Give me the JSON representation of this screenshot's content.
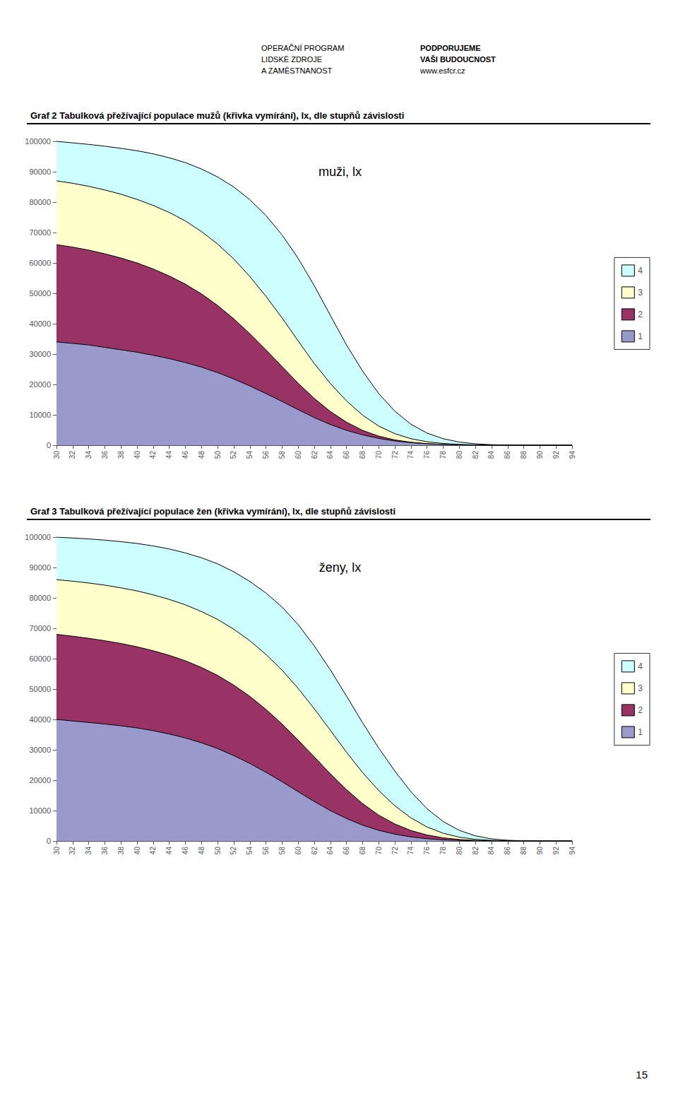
{
  "chart_data": [
    {
      "type": "area",
      "title": "Graf 2 Tabulková přežívající populace mužů (křivka vymírání), lx, dle stupňů závislosti",
      "annotations": [
        "muži, lx"
      ],
      "x": [
        30,
        32,
        34,
        36,
        38,
        40,
        42,
        44,
        46,
        48,
        50,
        52,
        54,
        56,
        58,
        60,
        62,
        64,
        66,
        68,
        70,
        72,
        74,
        76,
        78,
        80,
        82,
        84,
        86,
        88,
        90,
        92,
        94
      ],
      "series": [
        {
          "name": "1",
          "color": "#9999CC",
          "values": [
            34000,
            33500,
            33000,
            32200,
            31400,
            30600,
            29600,
            28500,
            27200,
            25700,
            23900,
            21800,
            19500,
            17000,
            14400,
            11700,
            9100,
            6800,
            4900,
            3400,
            2250,
            1400,
            840,
            480,
            260,
            130,
            60,
            25,
            9,
            3,
            1,
            0,
            0
          ]
        },
        {
          "name": "2",
          "color": "#993366",
          "values": [
            66000,
            65200,
            64200,
            63000,
            61600,
            60000,
            58000,
            55700,
            53000,
            49800,
            46000,
            41600,
            36700,
            31400,
            25900,
            20400,
            15400,
            11100,
            7600,
            4900,
            3000,
            1750,
            980,
            530,
            275,
            135,
            61,
            25,
            9,
            3,
            1,
            0,
            0
          ]
        },
        {
          "name": "3",
          "color": "#FFFFCC",
          "values": [
            87000,
            86200,
            85200,
            84000,
            82600,
            80900,
            78900,
            76600,
            73800,
            70300,
            66200,
            61300,
            55500,
            49000,
            41900,
            34300,
            26900,
            20300,
            14600,
            9900,
            6300,
            3800,
            2150,
            1150,
            580,
            270,
            115,
            43,
            14,
            4,
            1,
            0,
            0
          ]
        },
        {
          "name": "4",
          "color": "#CCFFFF",
          "values": [
            100000,
            99500,
            99000,
            98400,
            97700,
            96900,
            95900,
            94600,
            93000,
            90900,
            88300,
            85000,
            80800,
            75600,
            69200,
            61500,
            52500,
            42700,
            33000,
            24400,
            17000,
            11200,
            6900,
            4000,
            2150,
            1050,
            460,
            175,
            57,
            16,
            4,
            1,
            0
          ]
        }
      ],
      "xlim": [
        30,
        94
      ],
      "xticks": [
        30,
        32,
        34,
        36,
        38,
        40,
        42,
        44,
        46,
        48,
        50,
        52,
        54,
        56,
        58,
        60,
        62,
        64,
        66,
        68,
        70,
        72,
        74,
        76,
        78,
        80,
        82,
        84,
        86,
        88,
        90,
        92,
        94
      ],
      "ylim": [
        0,
        100000
      ],
      "yticks": [
        0,
        10000,
        20000,
        30000,
        40000,
        50000,
        60000,
        70000,
        80000,
        90000,
        100000
      ],
      "stacked": false,
      "grid": false,
      "legend": "right"
    },
    {
      "type": "area",
      "title": "Graf 3 Tabulková přežívající populace žen (křivka vymírání), lx, dle stupňů závislosti",
      "annotations": [
        "ženy, lx"
      ],
      "x": [
        30,
        32,
        34,
        36,
        38,
        40,
        42,
        44,
        46,
        48,
        50,
        52,
        54,
        56,
        58,
        60,
        62,
        64,
        66,
        68,
        70,
        72,
        74,
        76,
        78,
        80,
        82,
        84,
        86,
        88,
        90,
        92,
        94
      ],
      "series": [
        {
          "name": "1",
          "color": "#9999CC",
          "values": [
            40000,
            39500,
            39000,
            38500,
            37900,
            37200,
            36300,
            35200,
            33900,
            32300,
            30400,
            28100,
            25500,
            22600,
            19500,
            16200,
            13000,
            10000,
            7400,
            5200,
            3500,
            2250,
            1350,
            750,
            380,
            175,
            72,
            25,
            7,
            2,
            0,
            0,
            0
          ]
        },
        {
          "name": "2",
          "color": "#993366",
          "values": [
            68000,
            67400,
            66700,
            65900,
            65000,
            63900,
            62600,
            61100,
            59300,
            57100,
            54500,
            51300,
            47600,
            43300,
            38500,
            33200,
            27700,
            22100,
            16900,
            12300,
            8500,
            5600,
            3450,
            1990,
            1040,
            490,
            200,
            70,
            21,
            5,
            1,
            0,
            0
          ]
        },
        {
          "name": "3",
          "color": "#FFFFCC",
          "values": [
            86000,
            85500,
            84900,
            84200,
            83300,
            82300,
            81000,
            79500,
            77700,
            75500,
            72900,
            69700,
            65900,
            61400,
            56200,
            50200,
            43500,
            36400,
            29200,
            22500,
            16600,
            11600,
            7600,
            4600,
            2550,
            1260,
            540,
            195,
            61,
            16,
            3,
            1,
            0
          ]
        },
        {
          "name": "4",
          "color": "#CCFFFF",
          "values": [
            100000,
            99700,
            99400,
            99000,
            98500,
            97900,
            97100,
            96100,
            94800,
            93200,
            91200,
            88600,
            85400,
            81600,
            77000,
            71200,
            64200,
            56300,
            47700,
            38900,
            30600,
            23000,
            16200,
            10600,
            6400,
            3500,
            1700,
            700,
            240,
            68,
            16,
            3,
            1
          ]
        }
      ],
      "xlim": [
        30,
        94
      ],
      "xticks": [
        30,
        32,
        34,
        36,
        38,
        40,
        42,
        44,
        46,
        48,
        50,
        52,
        54,
        56,
        58,
        60,
        62,
        64,
        66,
        68,
        70,
        72,
        74,
        76,
        78,
        80,
        82,
        84,
        86,
        88,
        90,
        92,
        94
      ],
      "ylim": [
        0,
        100000
      ],
      "yticks": [
        0,
        10000,
        20000,
        30000,
        40000,
        50000,
        60000,
        70000,
        80000,
        90000,
        100000
      ],
      "stacked": false,
      "grid": false,
      "legend": "right"
    }
  ],
  "annotations": [
    "OPERAČNÍ PROGRAM",
    "LIDSKÉ ZDROJE",
    "A ZAMĚSTNANOST",
    "PODPORUJEME",
    "VAŠI BUDOUCNOST",
    "www.esfcr.cz",
    "15"
  ]
}
